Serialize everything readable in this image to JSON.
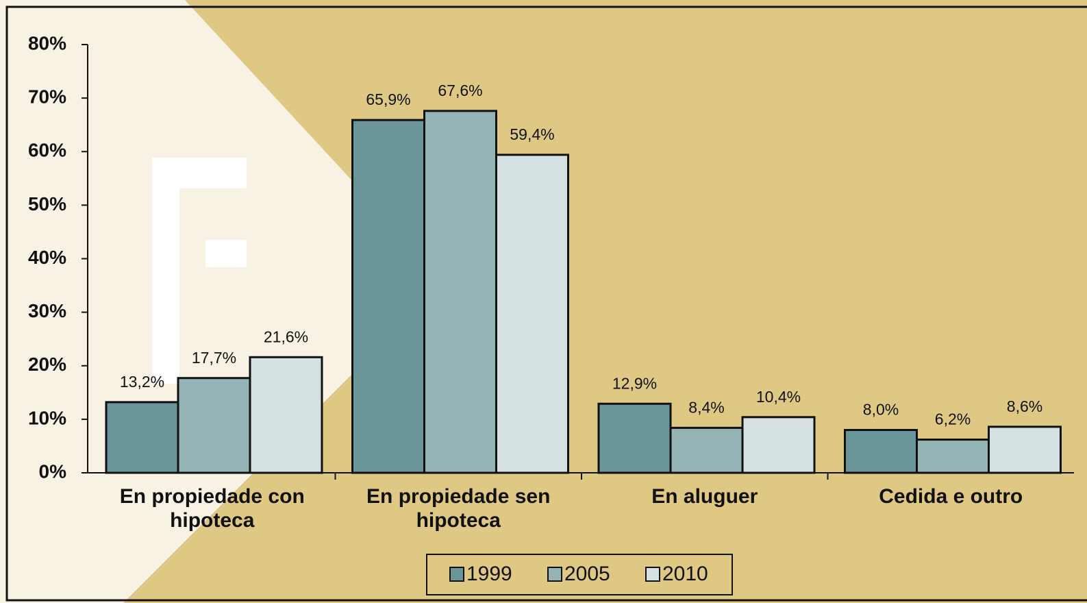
{
  "chart_data": {
    "type": "bar",
    "categories": [
      "En propiedade con hipoteca",
      "En propiedade sen hipoteca",
      "En aluguer",
      "Cedida e outro"
    ],
    "series": [
      {
        "name": "1999",
        "color": "#6a9599",
        "values": [
          13.2,
          65.9,
          12.9,
          8.0
        ],
        "value_labels": [
          "13,2%",
          "65,9%",
          "12,9%",
          "8,0%"
        ]
      },
      {
        "name": "2005",
        "color": "#94b4b6",
        "values": [
          17.7,
          67.6,
          8.4,
          6.2
        ],
        "value_labels": [
          "17,7%",
          "67,6%",
          "8,4%",
          "6,2%"
        ]
      },
      {
        "name": "2010",
        "color": "#d4e0e1",
        "values": [
          21.6,
          59.4,
          10.4,
          8.6
        ],
        "value_labels": [
          "21,6%",
          "59,4%",
          "10,4%",
          "8,6%"
        ]
      }
    ],
    "ylim": [
      0,
      80
    ],
    "yticks": [
      {
        "value": 0,
        "label": "0%"
      },
      {
        "value": 10,
        "label": "10%"
      },
      {
        "value": 20,
        "label": "20%"
      },
      {
        "value": 30,
        "label": "30%"
      },
      {
        "value": 40,
        "label": "40%"
      },
      {
        "value": 50,
        "label": "50%"
      },
      {
        "value": 60,
        "label": "60%"
      },
      {
        "value": 70,
        "label": "70%"
      },
      {
        "value": 80,
        "label": "80%"
      }
    ]
  }
}
